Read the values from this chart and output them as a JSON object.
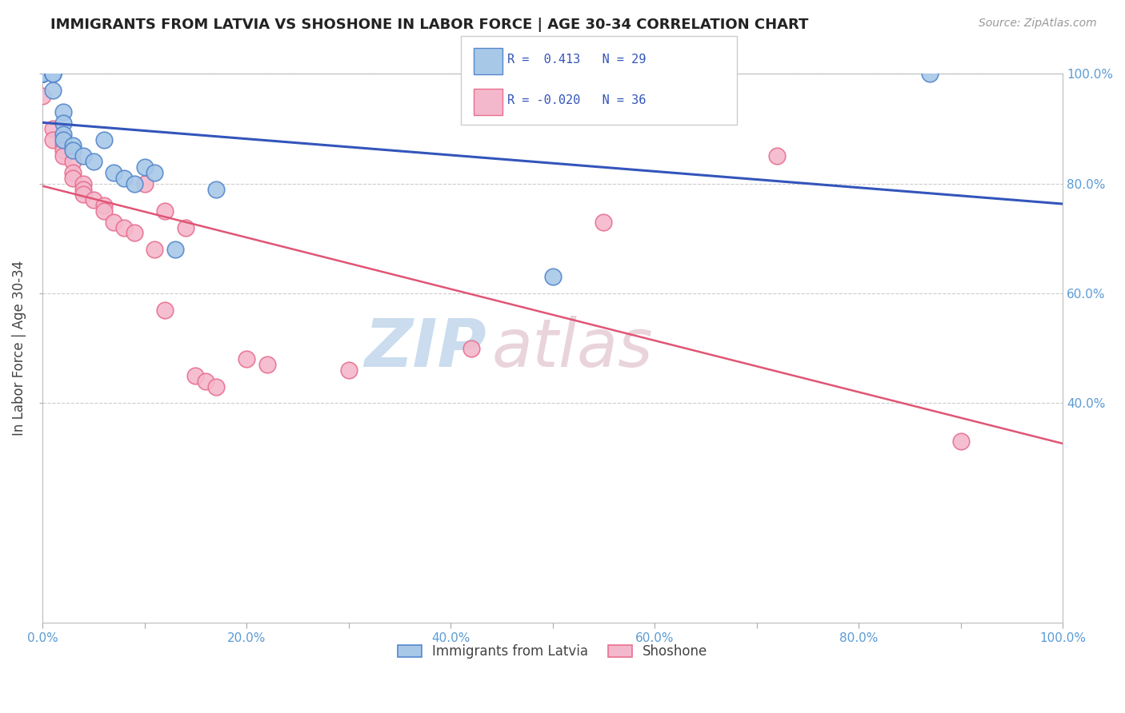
{
  "title": "IMMIGRANTS FROM LATVIA VS SHOSHONE IN LABOR FORCE | AGE 30-34 CORRELATION CHART",
  "source_text": "Source: ZipAtlas.com",
  "ylabel": "In Labor Force | Age 30-34",
  "xlim": [
    0.0,
    1.0
  ],
  "ylim": [
    0.0,
    1.0
  ],
  "x_tick_labels": [
    "0.0%",
    "",
    "20.0%",
    "",
    "40.0%",
    "",
    "60.0%",
    "",
    "80.0%",
    "",
    "100.0%"
  ],
  "x_tick_positions": [
    0.0,
    0.1,
    0.2,
    0.3,
    0.4,
    0.5,
    0.6,
    0.7,
    0.8,
    0.9,
    1.0
  ],
  "y_tick_labels_right": [
    "40.0%",
    "60.0%",
    "80.0%",
    "100.0%"
  ],
  "y_tick_positions_right": [
    0.4,
    0.6,
    0.8,
    1.0
  ],
  "latvia_color": "#a8c8e8",
  "shoshone_color": "#f4b8cc",
  "latvia_edge_color": "#5588cc",
  "shoshone_edge_color": "#e87090",
  "latvia_line_color": "#3355bb",
  "shoshone_line_color": "#e05575",
  "latvia_R": 0.413,
  "latvia_N": 29,
  "shoshone_R": -0.02,
  "shoshone_N": 36,
  "legend_labels": [
    "Immigrants from Latvia",
    "Shoshone"
  ],
  "watermark_zip": "ZIP",
  "watermark_atlas": "atlas",
  "grid_color": "#cccccc",
  "background_color": "#ffffff",
  "latvia_x": [
    0.0,
    0.0,
    0.0,
    0.0,
    0.0,
    0.0,
    0.01,
    0.01,
    0.01,
    0.01,
    0.01,
    0.02,
    0.02,
    0.02,
    0.02,
    0.03,
    0.03,
    0.04,
    0.05,
    0.06,
    0.07,
    0.08,
    0.09,
    0.1,
    0.11,
    0.13,
    0.17,
    0.5,
    0.87
  ],
  "latvia_y": [
    1.0,
    1.0,
    1.0,
    1.0,
    1.0,
    1.0,
    1.0,
    1.0,
    1.0,
    1.0,
    0.97,
    0.93,
    0.91,
    0.89,
    0.88,
    0.87,
    0.86,
    0.85,
    0.84,
    0.88,
    0.82,
    0.81,
    0.8,
    0.83,
    0.82,
    0.68,
    0.79,
    0.63,
    1.0
  ],
  "shoshone_x": [
    0.0,
    0.0,
    0.0,
    0.0,
    0.01,
    0.01,
    0.02,
    0.02,
    0.02,
    0.03,
    0.03,
    0.03,
    0.04,
    0.04,
    0.04,
    0.05,
    0.06,
    0.06,
    0.07,
    0.08,
    0.09,
    0.1,
    0.11,
    0.12,
    0.12,
    0.14,
    0.15,
    0.16,
    0.17,
    0.2,
    0.22,
    0.3,
    0.42,
    0.55,
    0.72,
    0.9
  ],
  "shoshone_y": [
    1.0,
    1.0,
    1.0,
    0.96,
    0.9,
    0.88,
    0.87,
    0.86,
    0.85,
    0.84,
    0.82,
    0.81,
    0.8,
    0.79,
    0.78,
    0.77,
    0.76,
    0.75,
    0.73,
    0.72,
    0.71,
    0.8,
    0.68,
    0.75,
    0.57,
    0.72,
    0.45,
    0.44,
    0.43,
    0.48,
    0.47,
    0.46,
    0.5,
    0.73,
    0.85,
    0.33
  ]
}
